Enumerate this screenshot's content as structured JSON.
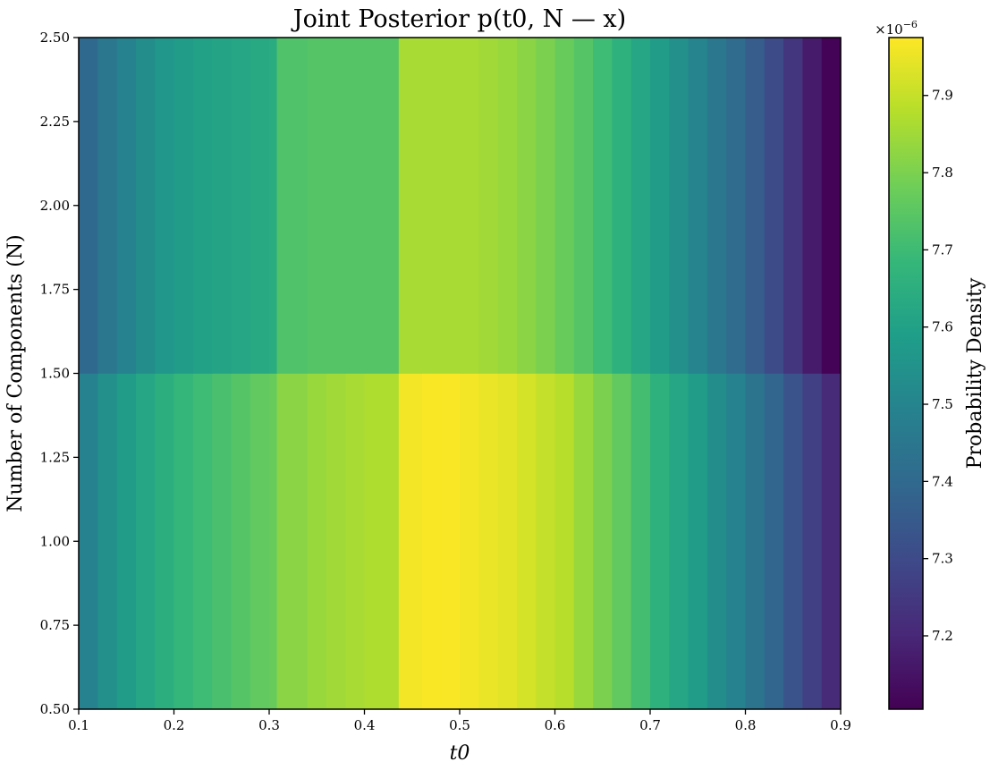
{
  "chart_data": {
    "type": "heatmap",
    "title": "Joint Posterior p(t0, N — x)",
    "xlabel": "t0",
    "ylabel": "Number of Components (N)",
    "xlim": [
      0.1,
      0.9
    ],
    "ylim": [
      0.5,
      2.5
    ],
    "x_ticks": [
      "0.1",
      "0.2",
      "0.3",
      "0.4",
      "0.5",
      "0.6",
      "0.7",
      "0.8",
      "0.9"
    ],
    "y_ticks": [
      "0.50",
      "0.75",
      "1.00",
      "1.25",
      "1.50",
      "1.75",
      "2.00",
      "2.25",
      "2.50"
    ],
    "x_edges": [
      0.1,
      0.12,
      0.14,
      0.16,
      0.18,
      0.2,
      0.22,
      0.24,
      0.26,
      0.28,
      0.3,
      0.308,
      0.34,
      0.36,
      0.38,
      0.4,
      0.436,
      0.46,
      0.48,
      0.5,
      0.52,
      0.54,
      0.56,
      0.58,
      0.6,
      0.62,
      0.64,
      0.66,
      0.68,
      0.7,
      0.72,
      0.74,
      0.76,
      0.78,
      0.8,
      0.82,
      0.84,
      0.86,
      0.88,
      0.9
    ],
    "y_edges": [
      0.5,
      1.5,
      2.5
    ],
    "rows": [
      {
        "N": 1,
        "values": [
          7.49,
          7.54,
          7.58,
          7.62,
          7.65,
          7.68,
          7.7,
          7.72,
          7.74,
          7.76,
          7.77,
          7.82,
          7.84,
          7.85,
          7.86,
          7.87,
          7.96,
          7.97,
          7.97,
          7.96,
          7.95,
          7.94,
          7.92,
          7.9,
          7.88,
          7.84,
          7.8,
          7.76,
          7.71,
          7.66,
          7.62,
          7.58,
          7.53,
          7.49,
          7.44,
          7.39,
          7.33,
          7.27,
          7.21
        ]
      },
      {
        "N": 2,
        "values": [
          7.4,
          7.45,
          7.49,
          7.53,
          7.56,
          7.58,
          7.6,
          7.61,
          7.62,
          7.63,
          7.64,
          7.73,
          7.74,
          7.74,
          7.74,
          7.74,
          7.86,
          7.86,
          7.86,
          7.86,
          7.85,
          7.84,
          7.82,
          7.8,
          7.77,
          7.74,
          7.7,
          7.66,
          7.62,
          7.58,
          7.54,
          7.5,
          7.45,
          7.41,
          7.36,
          7.3,
          7.24,
          7.17,
          7.11
        ]
      }
    ],
    "colormap": "viridis",
    "colorbar": {
      "label": "Probability Density",
      "multiplier": "×10",
      "exponent": "−6",
      "vmin": 7.105,
      "vmax": 7.975,
      "ticks": [
        "7.2",
        "7.3",
        "7.4",
        "7.5",
        "7.6",
        "7.7",
        "7.8",
        "7.9"
      ]
    },
    "grid": false
  }
}
